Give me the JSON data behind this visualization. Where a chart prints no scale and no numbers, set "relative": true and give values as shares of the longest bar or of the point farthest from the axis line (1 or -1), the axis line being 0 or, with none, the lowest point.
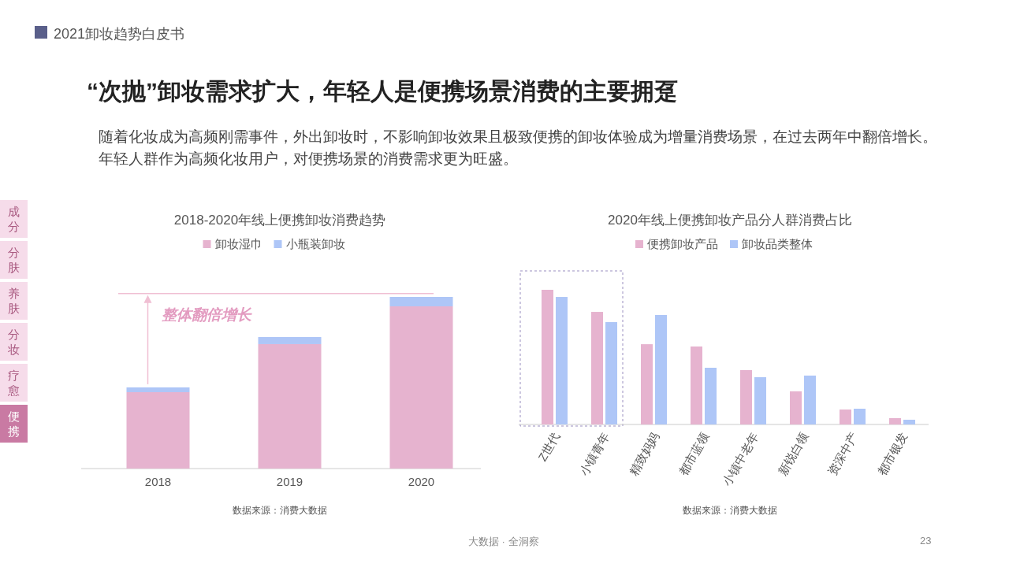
{
  "chart_data": [
    {
      "type": "bar",
      "title": "2018-2020年线上便携卸妆消费趋势",
      "categories": [
        "2018",
        "2019",
        "2020"
      ],
      "stacked": true,
      "relative": true,
      "legend": "top",
      "series": [
        {
          "name": "卸妆湿巾",
          "color": "#e6b3cf",
          "values": [
            0.445,
            0.725,
            0.945
          ]
        },
        {
          "name": "小瓶装卸妆",
          "color": "#aec6f7",
          "values": [
            0.028,
            0.041,
            0.055
          ]
        }
      ],
      "ref_lines": [
        {
          "axis": "y",
          "value": 1.02,
          "color": "#f0bfd3"
        }
      ],
      "annotations": [
        "整体翻倍增长",
        "数据来源：消费大数据",
        "2021卸妆趋势白皮书",
        "“次抛”卸妆需求扩大，年轻人是便携场景消费的主要拥趸",
        "随着化妆成为高频刚需事件，外出卸妆时，不影响卸妆效果且极致便携的卸妆体验成为增量消费场景，在过去两年中翻倍增长。年轻人群作为高频化妆用户，对便携场景的消费需求更为旺盛。",
        "成分",
        "分肤",
        "养肤",
        "分妆",
        "疗愈",
        "便携",
        "大数据 · 全洞察",
        "23"
      ]
    },
    {
      "type": "bar",
      "title": "2020年线上便携卸妆产品分人群消费占比",
      "categories": [
        "Z世代",
        "小镇青年",
        "精致妈妈",
        "都市蓝领",
        "小镇中老年",
        "新锐白领",
        "资深中产",
        "都市银发"
      ],
      "relative": true,
      "legend": "top",
      "series": [
        {
          "name": "便携卸妆产品",
          "color": "#e6b3cf",
          "values": [
            1,
            0.836,
            0.596,
            0.579,
            0.404,
            0.246,
            0.111,
            0.047
          ]
        },
        {
          "name": "卸妆品类整体",
          "color": "#aec6f7",
          "values": [
            0.947,
            0.76,
            0.813,
            0.421,
            0.351,
            0.363,
            0.117,
            0.035
          ]
        }
      ],
      "annotations": [
        "数据来源：消费大数据"
      ]
    }
  ]
}
